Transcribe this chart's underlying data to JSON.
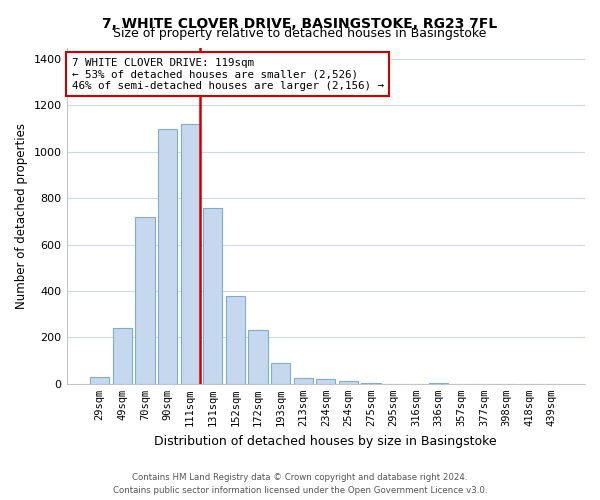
{
  "title": "7, WHITE CLOVER DRIVE, BASINGSTOKE, RG23 7FL",
  "subtitle": "Size of property relative to detached houses in Basingstoke",
  "xlabel": "Distribution of detached houses by size in Basingstoke",
  "ylabel": "Number of detached properties",
  "categories": [
    "29sqm",
    "49sqm",
    "70sqm",
    "90sqm",
    "111sqm",
    "131sqm",
    "152sqm",
    "172sqm",
    "193sqm",
    "213sqm",
    "234sqm",
    "254sqm",
    "275sqm",
    "295sqm",
    "316sqm",
    "336sqm",
    "357sqm",
    "377sqm",
    "398sqm",
    "418sqm",
    "439sqm"
  ],
  "values": [
    30,
    240,
    720,
    1100,
    1120,
    760,
    380,
    230,
    90,
    25,
    20,
    10,
    5,
    0,
    0,
    5,
    0,
    0,
    0,
    0,
    0
  ],
  "bar_color": "#c5d8ee",
  "bar_edgecolor": "#7eadd4",
  "annotation_line1": "7 WHITE CLOVER DRIVE: 119sqm",
  "annotation_line2": "← 53% of detached houses are smaller (2,526)",
  "annotation_line3": "46% of semi-detached houses are larger (2,156) →",
  "annotation_box_facecolor": "#ffffff",
  "annotation_box_edgecolor": "#cc0000",
  "ylim": [
    0,
    1450
  ],
  "yticks": [
    0,
    200,
    400,
    600,
    800,
    1000,
    1200,
    1400
  ],
  "footnote1": "Contains HM Land Registry data © Crown copyright and database right 2024.",
  "footnote2": "Contains public sector information licensed under the Open Government Licence v3.0.",
  "fig_background_color": "#ffffff",
  "plot_background": "#ffffff",
  "grid_color": "#d0d8e8"
}
